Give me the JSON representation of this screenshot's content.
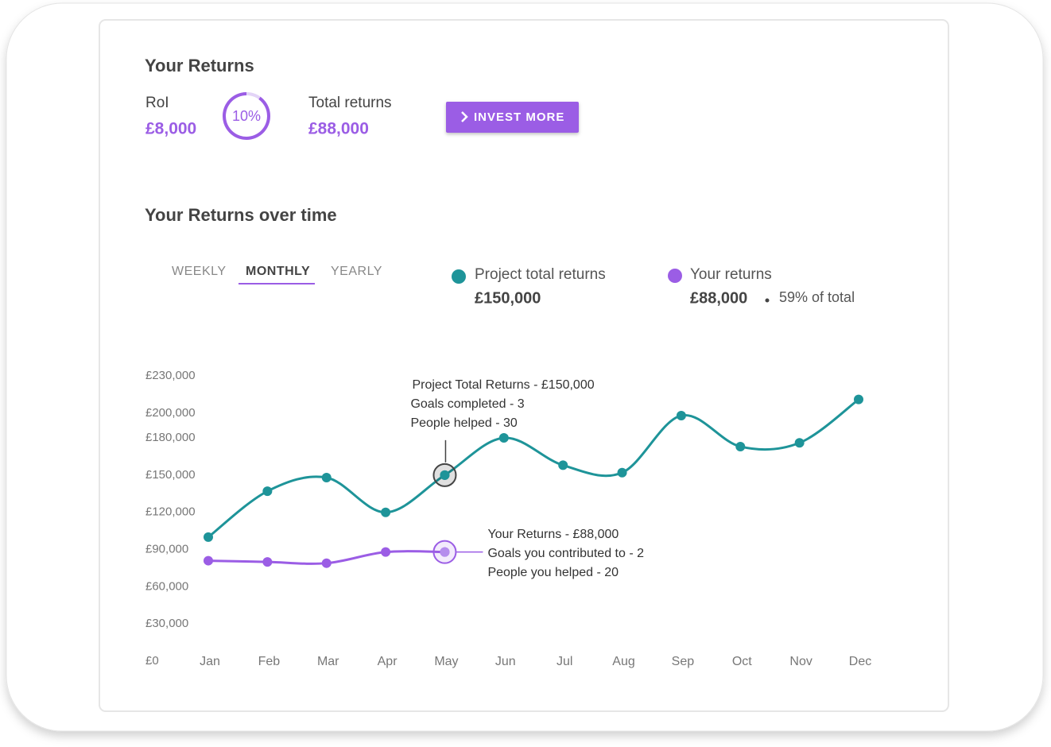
{
  "header": {
    "title": "Your Returns",
    "roi_label": "RoI",
    "roi_value": "£8,000",
    "roi_ring": {
      "value": 10,
      "label": "10%"
    },
    "total_label": "Total returns",
    "total_value": "£88,000",
    "button": "INVEST MORE"
  },
  "section_title": "Your Returns over time",
  "tabs": [
    {
      "label": "WEEKLY",
      "active": false
    },
    {
      "label": "MONTHLY",
      "active": true
    },
    {
      "label": "YEARLY",
      "active": false
    }
  ],
  "legend": [
    {
      "amount": "£150,000"
    },
    {
      "amount": "£88,000",
      "note": "59% of total"
    }
  ],
  "tooltips": [
    {
      "index": 4,
      "series": 0,
      "lines": [
        "Project Total Returns - £150,000",
        "Goals completed - 3",
        "People helped - 30"
      ]
    },
    {
      "index": 4,
      "series": 1,
      "lines": [
        "Your Returns - £88,000",
        "Goals you contributed to - 2",
        "People you helped - 20"
      ]
    }
  ],
  "chart_data": {
    "type": "line",
    "categories": [
      "Jan",
      "Feb",
      "Mar",
      "Apr",
      "May",
      "Jun",
      "Jul",
      "Aug",
      "Sep",
      "Oct",
      "Nov",
      "Dec"
    ],
    "series": [
      {
        "name": "Project total returns",
        "color": "#1e9499",
        "values": [
          100000,
          137000,
          148000,
          120000,
          150000,
          180000,
          158000,
          152000,
          198000,
          173000,
          176000,
          211000
        ]
      },
      {
        "name": "Your returns",
        "color": "#9b5de5",
        "values": [
          81000,
          80000,
          79000,
          88000,
          88000,
          null,
          null,
          null,
          null,
          null,
          null,
          null
        ]
      }
    ],
    "ylim": [
      0,
      230000
    ],
    "yticks": [
      {
        "value": 0,
        "label": "£0"
      },
      {
        "value": 30000,
        "label": "£30,000"
      },
      {
        "value": 60000,
        "label": "£60,000"
      },
      {
        "value": 90000,
        "label": "£90,000"
      },
      {
        "value": 120000,
        "label": "£120,000"
      },
      {
        "value": 150000,
        "label": "£150,000"
      },
      {
        "value": 180000,
        "label": "£180,000"
      },
      {
        "value": 200000,
        "label": "£200,000"
      },
      {
        "value": 230000,
        "label": "£230,000"
      }
    ],
    "grid": false
  }
}
